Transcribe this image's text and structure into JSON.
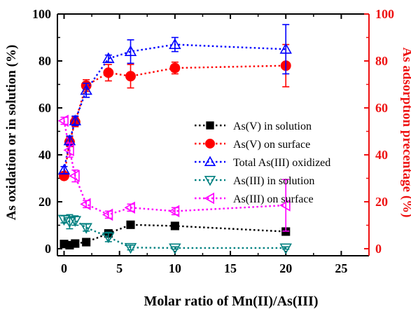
{
  "chart_data": {
    "type": "scatter",
    "xlabel": "Molar ratio of Mn(II)/As(III)",
    "ylabel": "As oxidation or in solution (%)",
    "y2label": "As adsorption precentage (%)",
    "xlim": [
      -0.6,
      27.5
    ],
    "ylim": [
      -3,
      100
    ],
    "y2lim": [
      -3,
      100
    ],
    "xticks": [
      0,
      5,
      10,
      15,
      20,
      25
    ],
    "yticks": [
      0,
      20,
      40,
      60,
      80,
      100
    ],
    "y2ticks": [
      0,
      20,
      40,
      60,
      80,
      100
    ],
    "grid": false,
    "legend_position": "center-right",
    "left_axis_color": "#000000",
    "right_axis_color": "#ee1111",
    "series": [
      {
        "name": "As(V) in solution",
        "marker": "square",
        "filled": true,
        "color": "#000000",
        "axis": "left",
        "x": [
          0,
          0.5,
          1,
          2,
          4,
          6,
          10,
          20
        ],
        "y": [
          2,
          1.5,
          2.2,
          2.8,
          6.5,
          10.2,
          9.7,
          7.3
        ],
        "err": [
          0,
          0,
          0,
          0,
          1.5,
          1,
          1,
          1
        ]
      },
      {
        "name": "As(V) on surface",
        "marker": "circle",
        "filled": true,
        "color": "#ff0000",
        "axis": "right",
        "x": [
          0,
          0.5,
          1,
          2,
          4,
          6,
          10,
          20
        ],
        "y": [
          31,
          45.5,
          54,
          69.5,
          75,
          73.5,
          77,
          78
        ],
        "err": [
          1,
          2,
          2,
          2.5,
          3.5,
          5,
          2.5,
          9
        ]
      },
      {
        "name": "Total As(III) oxidized",
        "marker": "triangle-up",
        "filled": false,
        "color": "#0000ff",
        "axis": "left",
        "x": [
          0,
          0.5,
          1,
          2,
          4,
          6,
          10,
          20
        ],
        "y": [
          33.5,
          46,
          54.5,
          67.5,
          81,
          84,
          87,
          85
        ],
        "err": [
          1.5,
          2,
          2,
          3,
          1.5,
          5,
          3,
          10.5
        ]
      },
      {
        "name": "As(III) in solution",
        "marker": "triangle-down",
        "filled": false,
        "color": "#008080",
        "axis": "left",
        "x": [
          0,
          0.5,
          1,
          2,
          4,
          6,
          10,
          20
        ],
        "y": [
          12.5,
          11.5,
          12,
          9,
          5,
          0.5,
          0.3,
          0.3
        ],
        "err": [
          1.5,
          3,
          2,
          1.5,
          2,
          1,
          0.5,
          0.5
        ]
      },
      {
        "name": "As(III) on surface",
        "marker": "triangle-left",
        "filled": false,
        "color": "#ff00ff",
        "axis": "right",
        "x": [
          0,
          0.5,
          1,
          2,
          4,
          6,
          10,
          20
        ],
        "y": [
          54.5,
          42,
          31,
          19,
          14.5,
          17.5,
          16,
          18.5
        ],
        "err": [
          1.5,
          3,
          2.5,
          1.5,
          1.5,
          1.5,
          1.5,
          11
        ]
      }
    ]
  }
}
